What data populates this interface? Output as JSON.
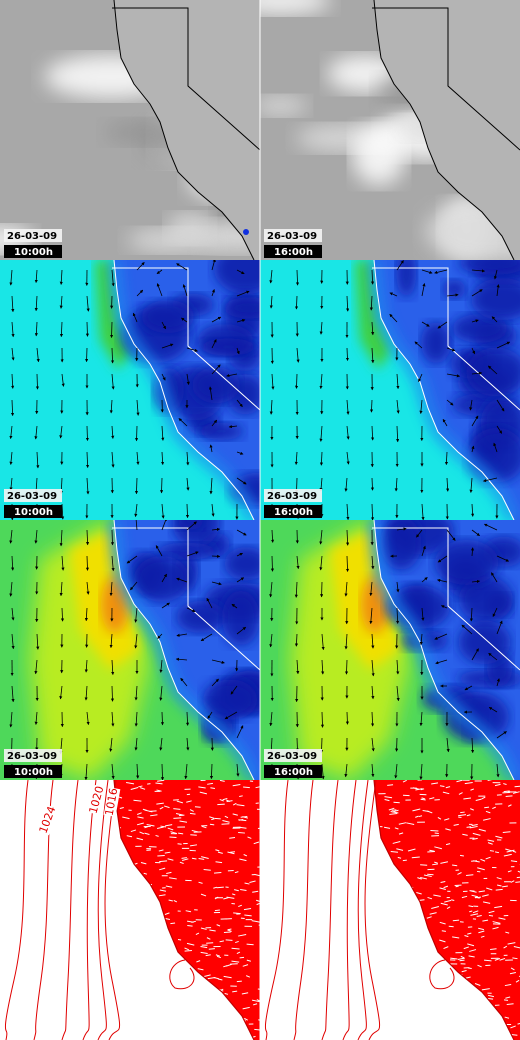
{
  "rows": [
    {
      "panels": [
        {
          "date": "26-03-09",
          "time": "10:00h"
        },
        {
          "date": "26-03-09",
          "time": "16:00h"
        }
      ]
    },
    {
      "panels": [
        {
          "date": "26-03-09",
          "time": "10:00h"
        },
        {
          "date": "26-03-09",
          "time": "16:00h"
        }
      ]
    },
    {
      "panels": [
        {
          "date": "26-03-09",
          "time": "10:00h"
        },
        {
          "date": "26-03-09",
          "time": "16:00h"
        }
      ]
    }
  ],
  "isobar_labels": [
    "1024",
    "1020",
    "1016"
  ]
}
